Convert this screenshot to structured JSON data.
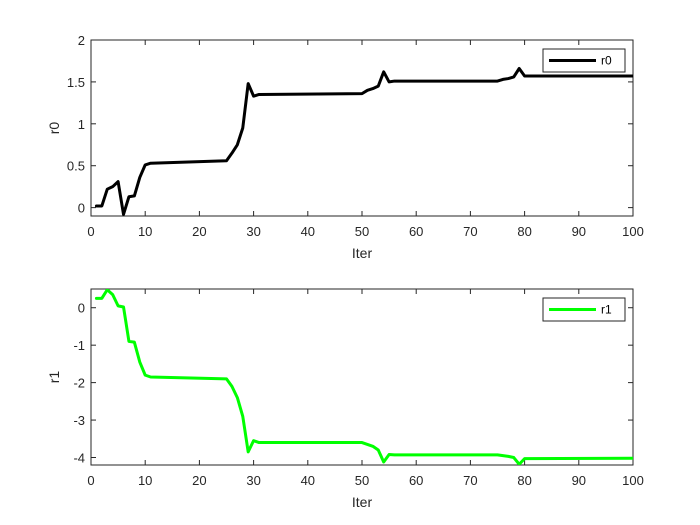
{
  "chart_data": [
    {
      "type": "line",
      "xlabel": "Iter",
      "ylabel": "r0",
      "xlim": [
        0,
        100
      ],
      "ylim": [
        -0.1,
        2
      ],
      "xticks": [
        0,
        10,
        20,
        30,
        40,
        50,
        60,
        70,
        80,
        90,
        100
      ],
      "yticks": [
        0,
        0.5,
        1,
        1.5,
        2
      ],
      "legend_position": "top-right",
      "grid": false,
      "series": [
        {
          "name": "r0",
          "color": "#000000",
          "x": [
            1,
            2,
            3,
            4,
            5,
            6,
            7,
            8,
            9,
            10,
            11,
            25,
            26,
            27,
            28,
            29,
            30,
            31,
            50,
            51,
            52,
            53,
            54,
            55,
            56,
            75,
            76,
            77,
            78,
            79,
            80,
            100
          ],
          "y": [
            0.02,
            0.02,
            0.22,
            0.25,
            0.31,
            -0.08,
            0.13,
            0.14,
            0.36,
            0.51,
            0.53,
            0.56,
            0.65,
            0.75,
            0.95,
            1.48,
            1.33,
            1.35,
            1.36,
            1.4,
            1.42,
            1.45,
            1.62,
            1.5,
            1.51,
            1.51,
            1.53,
            1.54,
            1.56,
            1.66,
            1.57,
            1.57
          ]
        }
      ]
    },
    {
      "type": "line",
      "xlabel": "Iter",
      "ylabel": "r1",
      "xlim": [
        0,
        100
      ],
      "ylim": [
        -4.2,
        0.5
      ],
      "xticks": [
        0,
        10,
        20,
        30,
        40,
        50,
        60,
        70,
        80,
        90,
        100
      ],
      "yticks": [
        -4,
        -3,
        -2,
        -1,
        0
      ],
      "legend_position": "top-right",
      "grid": false,
      "series": [
        {
          "name": "r1",
          "color": "#00ff00",
          "x": [
            1,
            2,
            3,
            4,
            5,
            6,
            7,
            8,
            9,
            10,
            11,
            25,
            26,
            27,
            28,
            29,
            30,
            31,
            50,
            51,
            52,
            53,
            54,
            55,
            56,
            75,
            76,
            77,
            78,
            79,
            80,
            100
          ],
          "y": [
            0.25,
            0.25,
            0.48,
            0.35,
            0.05,
            0.02,
            -0.9,
            -0.92,
            -1.45,
            -1.8,
            -1.85,
            -1.9,
            -2.1,
            -2.4,
            -2.9,
            -3.85,
            -3.55,
            -3.6,
            -3.6,
            -3.65,
            -3.7,
            -3.8,
            -4.12,
            -3.92,
            -3.93,
            -3.93,
            -3.95,
            -3.97,
            -4.0,
            -4.18,
            -4.03,
            -4.02
          ]
        }
      ]
    }
  ]
}
